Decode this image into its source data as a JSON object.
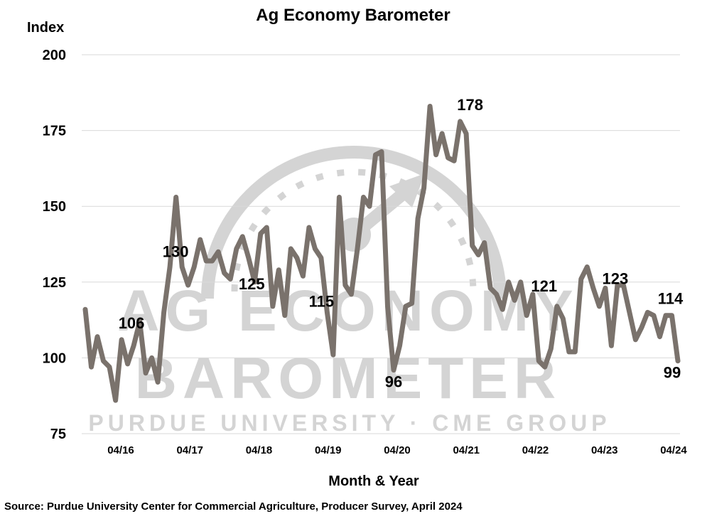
{
  "watermark": {
    "line1": "AG ECONOMY",
    "line2": "BAROMETER",
    "line3": "PURDUE UNIVERSITY · CME GROUP"
  },
  "source_note": "Source: Purdue University Center for Commercial Agriculture, Producer Survey, April 2024",
  "colors": {
    "line": "#7a726c",
    "grid": "#d9d9d9",
    "watermark": "#d4d4d4"
  },
  "chart_data": {
    "type": "line",
    "title": "Ag Economy Barometer",
    "ylabel": "Index",
    "xlabel": "Month & Year",
    "ylim": [
      75,
      200
    ],
    "yticks": [
      75,
      100,
      125,
      150,
      175,
      200
    ],
    "grid": true,
    "legend": "none",
    "x_tick_labels": [
      "04/16",
      "04/17",
      "04/18",
      "04/19",
      "04/20",
      "04/21",
      "04/22",
      "04/23",
      "04/24"
    ],
    "series": [
      {
        "values": [
          116,
          97,
          107,
          99,
          97,
          86,
          106,
          98,
          104,
          112,
          95,
          100,
          92,
          115,
          130,
          153,
          130,
          124,
          130,
          139,
          132,
          132,
          135,
          128,
          126,
          136,
          140,
          133,
          125,
          141,
          143,
          117,
          129,
          114,
          136,
          133,
          127,
          143,
          136,
          133,
          115,
          101,
          153,
          124,
          121,
          136,
          153,
          150,
          167,
          168,
          117,
          96,
          104,
          117,
          118,
          146,
          156,
          183,
          167,
          174,
          166,
          165,
          178,
          174,
          137,
          134,
          138,
          123,
          121,
          116,
          125,
          119,
          125,
          114,
          121,
          99,
          97,
          103,
          117,
          113,
          102,
          102,
          126,
          130,
          123,
          117,
          123,
          104,
          124,
          124,
          115,
          106,
          110,
          115,
          114,
          107,
          114,
          114,
          99
        ],
        "data_labels": [
          {
            "index": 6,
            "text": "106"
          },
          {
            "index": 14,
            "text": "130"
          },
          {
            "index": 28,
            "text": "125"
          },
          {
            "index": 40,
            "text": "115"
          },
          {
            "index": 51,
            "text": "96"
          },
          {
            "index": 62,
            "text": "178"
          },
          {
            "index": 74,
            "text": "121"
          },
          {
            "index": 86,
            "text": "123"
          },
          {
            "index": 97,
            "text": "114"
          },
          {
            "index": 98,
            "text": "99"
          }
        ]
      }
    ]
  }
}
